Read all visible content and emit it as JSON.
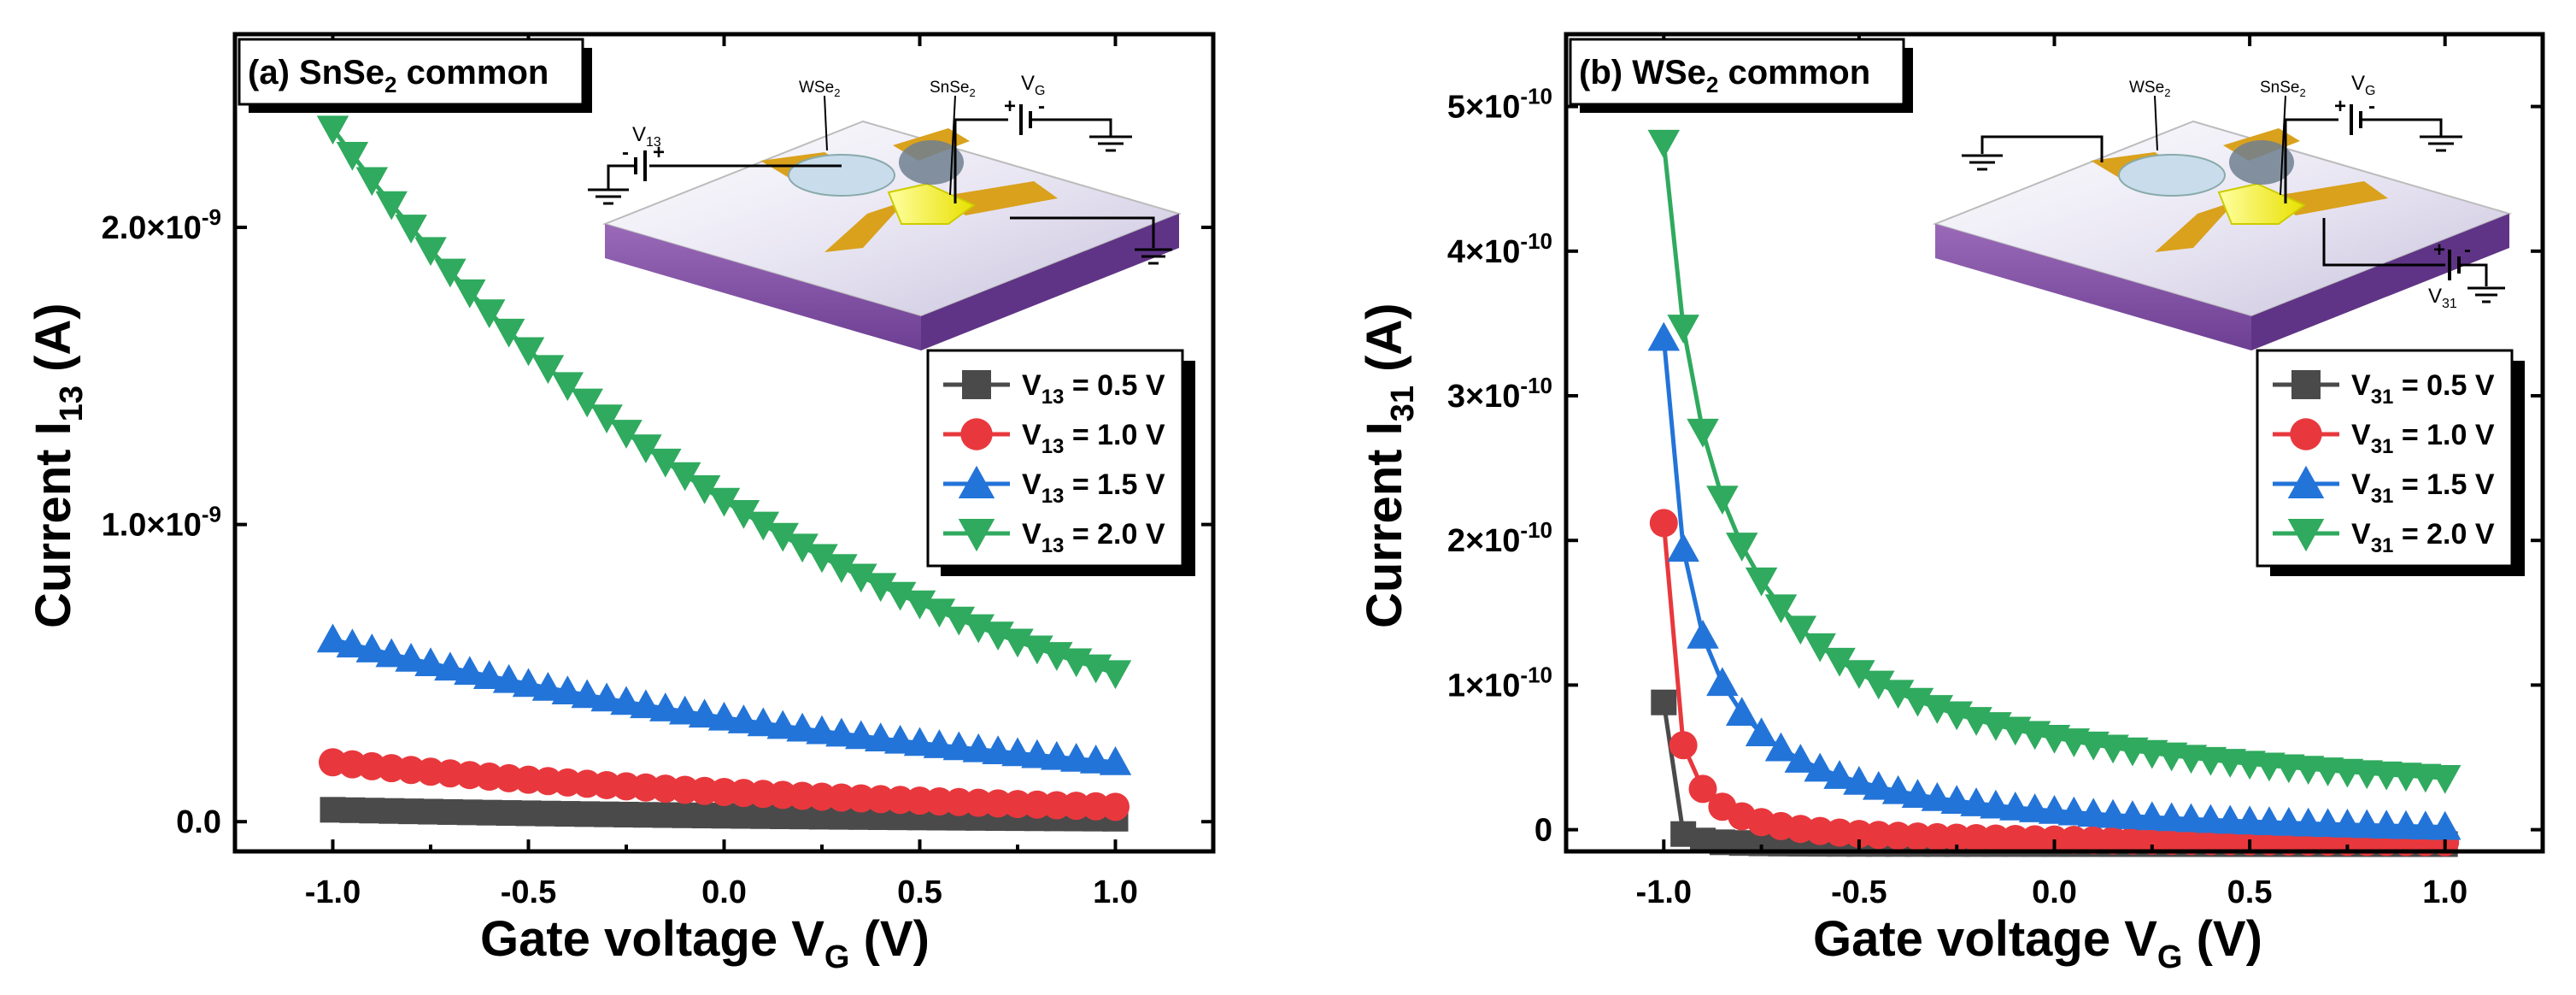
{
  "colors": {
    "series": [
      "#4a4a4a",
      "#e8383d",
      "#2374d8",
      "#2faa5e"
    ]
  },
  "chart_data": [
    {
      "type": "scatter",
      "panel_label": "(a) SnSe",
      "panel_label_sub": "2",
      "panel_label_rest": " common",
      "ylabel_main": "Current I",
      "ylabel_sub": "13",
      "ylabel_unit": " (A)",
      "xlabel_main": "Gate voltage V",
      "xlabel_sub": "G",
      "xlabel_unit": " (V)",
      "xlim": [
        -1.25,
        1.25
      ],
      "ylim": [
        -1e-10,
        2.65e-09
      ],
      "xticks": [
        -1.0,
        -0.5,
        0.0,
        0.5,
        1.0
      ],
      "xtick_labels": [
        "-1.0",
        "-0.5",
        "0.0",
        "0.5",
        "1.0"
      ],
      "yticks": [
        0,
        1e-09,
        2e-09
      ],
      "ytick_labels": [
        {
          "mant": "0.0",
          "exp": ""
        },
        {
          "mant": "1.0×10",
          "exp": "-9"
        },
        {
          "mant": "2.0×10",
          "exp": "-9"
        }
      ],
      "legend_position": "right",
      "legend_sym": "V",
      "legend_sub": "13",
      "series": [
        {
          "name": "0.5 V",
          "label": " = 0.5 V",
          "marker": "square",
          "a": 2e-11,
          "k": 0.693,
          "c": 0
        },
        {
          "name": "1.0 V",
          "label": " = 1.0 V",
          "marker": "circle",
          "a": 1e-10,
          "k": 0.693,
          "c": 0
        },
        {
          "name": "1.5 V",
          "label": " = 1.5 V",
          "marker": "triangle-up",
          "a": 3.5e-10,
          "k": 0.56,
          "c": 0
        },
        {
          "name": "2.0 V",
          "label": " = 2.0 V",
          "marker": "triangle-down",
          "a": 1.08e-09,
          "k": 0.77,
          "c": 0
        }
      ],
      "x_points": {
        "start": -1.0,
        "end": 1.0,
        "step": 0.05
      },
      "inset": {
        "label_WSe": "WSe",
        "label_SnSe": "SnSe",
        "sub": "2",
        "vg": "V",
        "vg_sub": "G",
        "bias": "V",
        "bias_sub": "13",
        "plus": "+",
        "minus": "-"
      }
    },
    {
      "type": "scatter",
      "panel_label": "(b) WSe",
      "panel_label_sub": "2",
      "panel_label_rest": " common",
      "ylabel_main": "Current I",
      "ylabel_sub": "31",
      "ylabel_unit": " (A)",
      "xlabel_main": "Gate voltage V",
      "xlabel_sub": "G",
      "xlabel_unit": " (V)",
      "xlim": [
        -1.25,
        1.25
      ],
      "ylim": [
        -1.5e-11,
        5.5e-10
      ],
      "xticks": [
        -1.0,
        -0.5,
        0.0,
        0.5,
        1.0
      ],
      "xtick_labels": [
        "-1.0",
        "-0.5",
        "0.0",
        "0.5",
        "1.0"
      ],
      "yticks": [
        0,
        1e-10,
        2e-10,
        3e-10,
        4e-10,
        5e-10
      ],
      "ytick_labels": [
        {
          "mant": "0",
          "exp": ""
        },
        {
          "mant": "1×10",
          "exp": "-10"
        },
        {
          "mant": "2×10",
          "exp": "-10"
        },
        {
          "mant": "3×10",
          "exp": "-10"
        },
        {
          "mant": "4×10",
          "exp": "-10"
        },
        {
          "mant": "5×10",
          "exp": "-10"
        }
      ],
      "legend_position": "right",
      "legend_sym": "V",
      "legend_sub": "31",
      "series": [
        {
          "name": "0.5 V",
          "label": " = 0.5 V",
          "marker": "square",
          "y0": 8.8e-11,
          "p": 1.8,
          "c": -1e-11,
          "d": 0.015
        },
        {
          "name": "1.0 V",
          "label": " = 1.0 V",
          "marker": "circle",
          "y0": 2.12e-10,
          "p": 1.2,
          "c": -1e-11,
          "d": 0.03
        },
        {
          "name": "1.5 V",
          "label": " = 1.5 V",
          "marker": "triangle-up",
          "y0": 3.4e-10,
          "p": 1.0,
          "c": -1e-11,
          "d": 0.07
        },
        {
          "name": "2.0 V",
          "label": " = 2.0 V",
          "marker": "triangle-down",
          "y0": 4.75e-10,
          "p": 0.9,
          "c": 0,
          "d": 0.12
        }
      ],
      "x_points": {
        "start": -1.0,
        "end": 1.0,
        "step": 0.05
      },
      "inset": {
        "label_WSe": "WSe",
        "label_SnSe": "SnSe",
        "sub": "2",
        "vg": "V",
        "vg_sub": "G",
        "bias": "V",
        "bias_sub": "31",
        "plus": "+",
        "minus": "-"
      }
    }
  ]
}
